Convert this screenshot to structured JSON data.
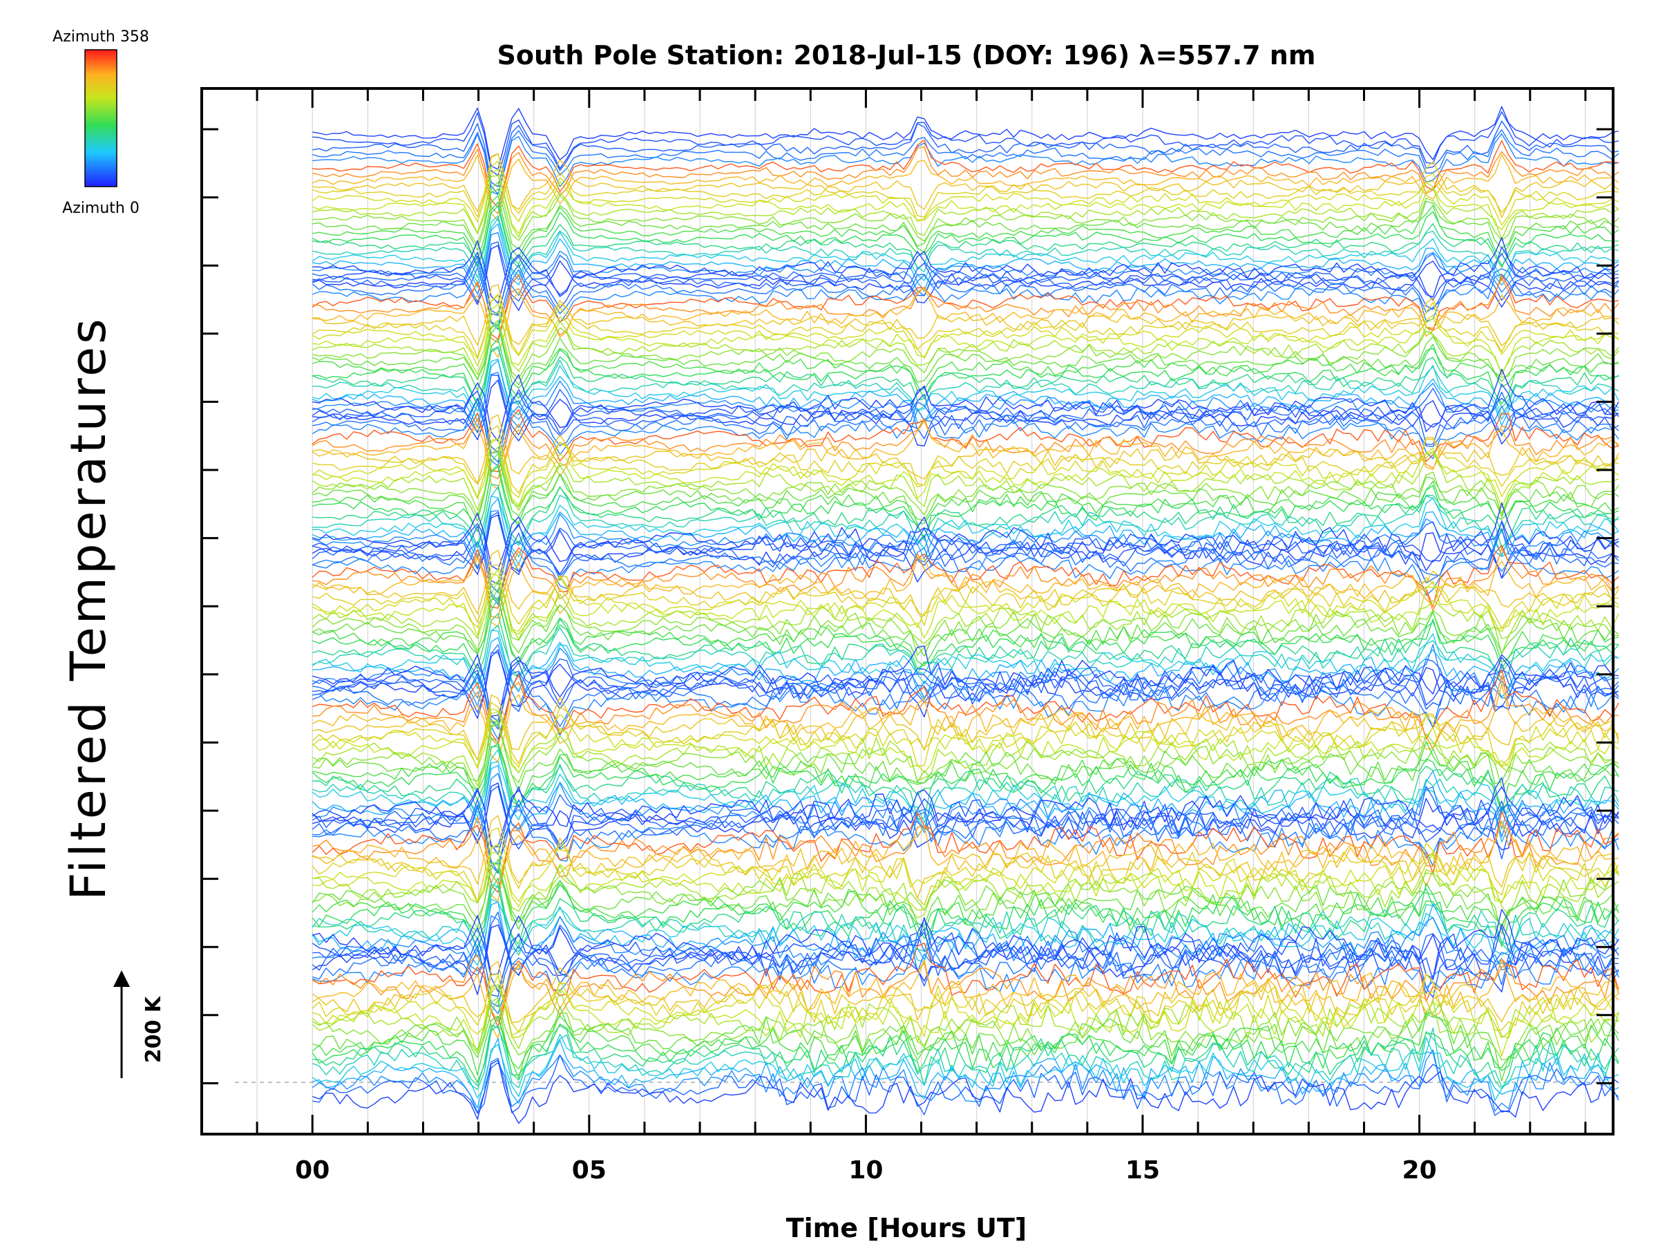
{
  "chart_data": {
    "type": "line",
    "title": "South Pole Station: 2018-Jul-15 (DOY: 196) λ=557.7 nm",
    "xlabel": "Time [Hours UT]",
    "ylabel": "Filtered Temperatures",
    "xlim": [
      -2,
      23.5
    ],
    "x_ticks": [
      0,
      5,
      10,
      15,
      20
    ],
    "x_tick_labels": [
      "00",
      "05",
      "10",
      "15",
      "20"
    ],
    "data_x_range": [
      0,
      23.6
    ],
    "grid": "vertical, hourly",
    "colorbar": {
      "label_top": "Azimuth  358",
      "label_bottom": "Azimuth  0",
      "min_azimuth": 0,
      "max_azimuth": 358,
      "colormap": "rainbow (blue→green→yellow→red)"
    },
    "scale_bar": {
      "label": "200 K",
      "value_K": 200
    },
    "stack": {
      "groups": 7,
      "curves_per_group": 24,
      "description": "stacked azimuth-sorted filtered temperature traces, 7 zenith-angle bands"
    },
    "event_hours": [
      3.0,
      3.3,
      3.7,
      4.5,
      11.0,
      20.2,
      21.5
    ]
  }
}
